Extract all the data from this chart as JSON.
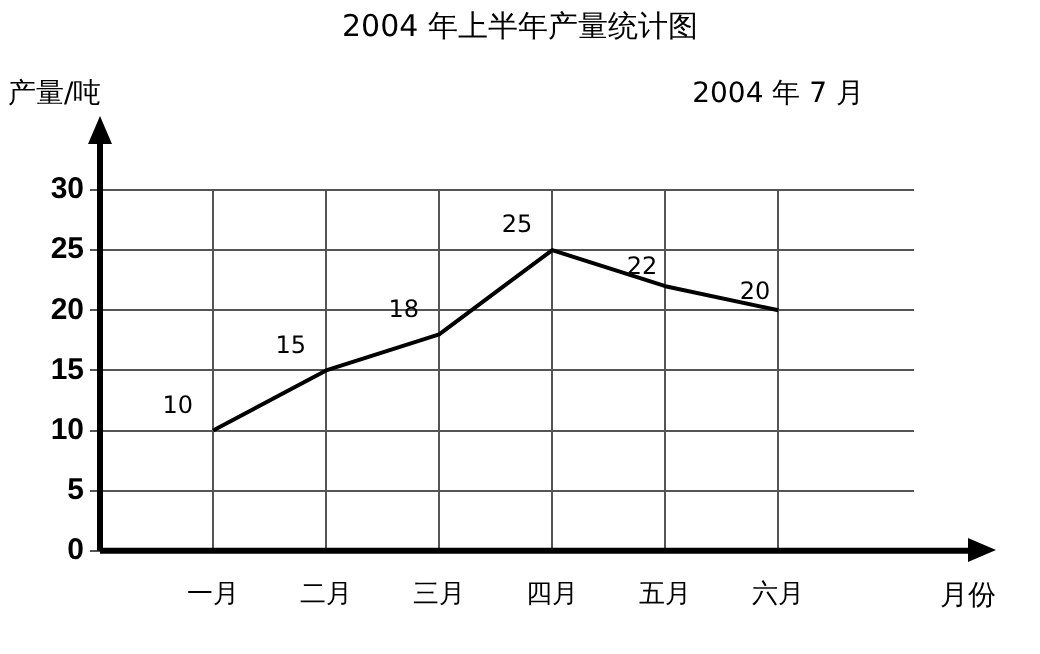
{
  "chart_data": {
    "type": "line",
    "title": "2004 年上半年产量统计图",
    "subtitle": "2004 年 7 月",
    "xlabel": "月份",
    "ylabel": "产量/吨",
    "categories": [
      "一月",
      "二月",
      "三月",
      "四月",
      "五月",
      "六月"
    ],
    "series": [
      {
        "color": "#000000",
        "values": [
          10,
          15,
          18,
          25,
          22,
          20
        ]
      }
    ],
    "ylim": [
      0,
      30
    ],
    "yticks": [
      0,
      5,
      10,
      15,
      20,
      25,
      30
    ],
    "grid": true,
    "data_labels": true,
    "legend": false,
    "marker": "none",
    "line_style": "solid"
  }
}
